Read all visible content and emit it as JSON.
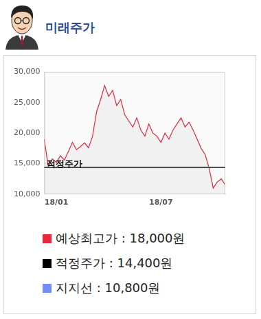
{
  "title": "미래주가",
  "chart_data": {
    "type": "line",
    "categories": [
      null,
      null,
      null,
      "18/01",
      null,
      null,
      null,
      null,
      null,
      null,
      null,
      null,
      null,
      null,
      null,
      null,
      null,
      null,
      null,
      null,
      null,
      null,
      null,
      null,
      null,
      null,
      null,
      null,
      null,
      "18/07",
      null,
      null,
      null,
      null,
      null,
      null,
      null,
      null,
      null,
      null,
      null,
      null,
      null,
      null,
      null,
      null
    ],
    "values": [
      19000,
      14500,
      15800,
      15200,
      16300,
      15600,
      17000,
      18500,
      17300,
      17800,
      18400,
      17600,
      19500,
      23500,
      25500,
      27800,
      26000,
      27000,
      24500,
      25500,
      23000,
      22000,
      21000,
      22500,
      20500,
      19500,
      21500,
      20000,
      19500,
      18500,
      20000,
      19000,
      20500,
      21500,
      22500,
      21000,
      21800,
      20500,
      19000,
      17500,
      16500,
      14200,
      11000,
      12000,
      12500,
      11500
    ],
    "color": "#e0283a",
    "ylim": [
      10000,
      30000
    ],
    "yticks": [
      {
        "value": 10000,
        "label": "10,000"
      },
      {
        "value": 15000,
        "label": "15,000"
      },
      {
        "value": 20000,
        "label": "20,000"
      },
      {
        "value": 25000,
        "label": "25,000"
      },
      {
        "value": 30000,
        "label": "30,000"
      }
    ],
    "grid": false,
    "fair_price": {
      "label": "적정주가",
      "value": 14400,
      "color": "#000000"
    },
    "legend_items": [
      {
        "label": "예상최고가 : 18,000원",
        "color": "#e8283c"
      },
      {
        "label": "적정주가 : 14,400원",
        "color": "#000000"
      },
      {
        "label": "지지선 : 10,800원",
        "color": "#6f8ff5"
      }
    ]
  }
}
